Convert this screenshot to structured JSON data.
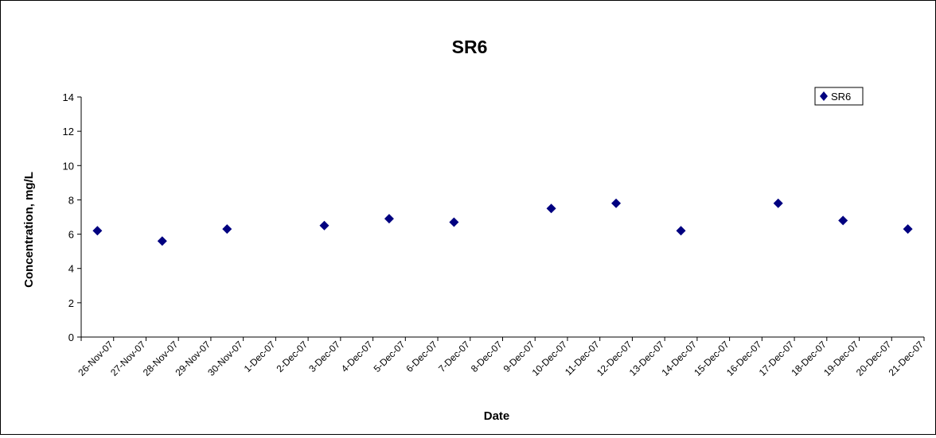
{
  "chart_data": {
    "type": "scatter",
    "title": "SR6",
    "xlabel": "Date",
    "ylabel": "Concentration, mg/L",
    "ylim": [
      0,
      14
    ],
    "yticks": [
      0,
      2,
      4,
      6,
      8,
      10,
      12,
      14
    ],
    "xlim": [
      "2007-11-26",
      "2007-12-22"
    ],
    "xtick_labels": [
      "26-Nov-07",
      "27-Nov-07",
      "28-Nov-07",
      "29-Nov-07",
      "30-Nov-07",
      "1-Dec-07",
      "2-Dec-07",
      "3-Dec-07",
      "4-Dec-07",
      "5-Dec-07",
      "6-Dec-07",
      "7-Dec-07",
      "8-Dec-07",
      "9-Dec-07",
      "10-Dec-07",
      "11-Dec-07",
      "12-Dec-07",
      "13-Dec-07",
      "14-Dec-07",
      "15-Dec-07",
      "16-Dec-07",
      "17-Dec-07",
      "18-Dec-07",
      "19-Dec-07",
      "20-Dec-07",
      "21-Dec-07"
    ],
    "grid": false,
    "legend": "top-right",
    "series": [
      {
        "name": "SR6",
        "color": "#000080",
        "marker": "diamond",
        "points": [
          {
            "x": "2007-11-26",
            "y": 6.2
          },
          {
            "x": "2007-11-28",
            "y": 5.6
          },
          {
            "x": "2007-11-30",
            "y": 6.3
          },
          {
            "x": "2007-12-03",
            "y": 6.5
          },
          {
            "x": "2007-12-05",
            "y": 6.9
          },
          {
            "x": "2007-12-07",
            "y": 6.7
          },
          {
            "x": "2007-12-10",
            "y": 7.5
          },
          {
            "x": "2007-12-12",
            "y": 7.8
          },
          {
            "x": "2007-12-14",
            "y": 6.2
          },
          {
            "x": "2007-12-17",
            "y": 7.8
          },
          {
            "x": "2007-12-19",
            "y": 6.8
          },
          {
            "x": "2007-12-21",
            "y": 6.3
          }
        ]
      }
    ]
  }
}
